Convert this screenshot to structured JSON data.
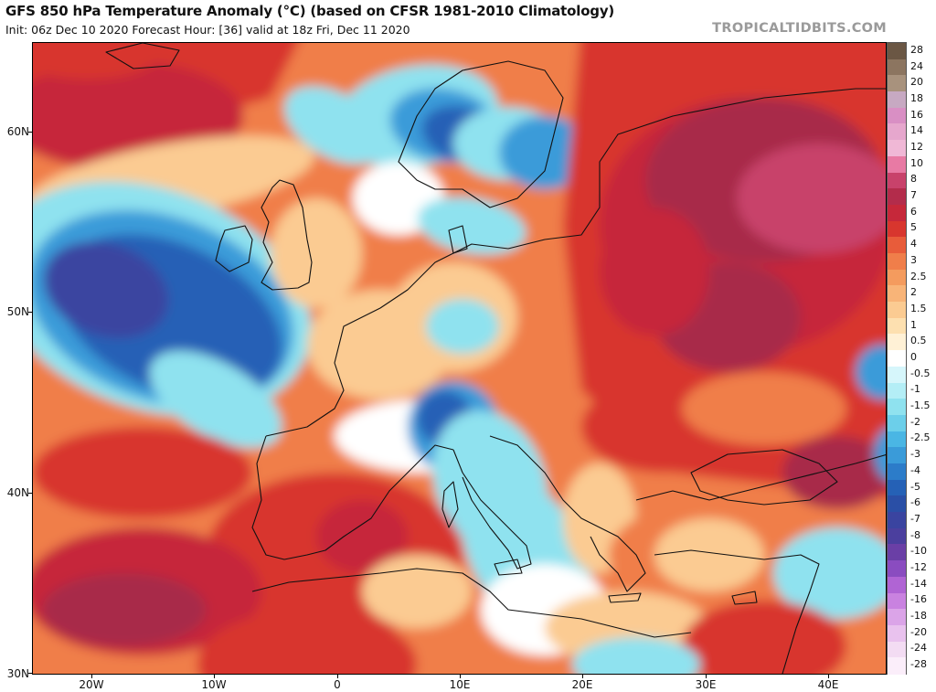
{
  "header": {
    "title": "GFS 850 hPa Temperature Anomaly (°C) (based on CFSR 1981-2010 Climatology)",
    "subtitle": "Init: 06z Dec 10 2020   Forecast Hour: [36]   valid at 18z Fri, Dec 11 2020",
    "brand": "TROPICALTIDBITS.COM"
  },
  "axes": {
    "lat_labels": [
      "60N",
      "50N",
      "40N",
      "30N"
    ],
    "lon_labels": [
      "20W",
      "10W",
      "0",
      "10E",
      "20E",
      "30E",
      "40E"
    ]
  },
  "colorbar": {
    "levels": [
      {
        "label": "28",
        "color": "#6b5744"
      },
      {
        "label": "24",
        "color": "#8c7560"
      },
      {
        "label": "20",
        "color": "#a8927d"
      },
      {
        "label": "18",
        "color": "#c7a9c2"
      },
      {
        "label": "16",
        "color": "#d98fc4"
      },
      {
        "label": "14",
        "color": "#e6a7cd"
      },
      {
        "label": "12",
        "color": "#f0b8d6"
      },
      {
        "label": "10",
        "color": "#e87aa4"
      },
      {
        "label": "8",
        "color": "#c8426b"
      },
      {
        "label": "7",
        "color": "#b32c4b"
      },
      {
        "label": "6",
        "color": "#c6283a"
      },
      {
        "label": "5",
        "color": "#d8362e"
      },
      {
        "label": "4",
        "color": "#e85c3a"
      },
      {
        "label": "3",
        "color": "#f07e4a"
      },
      {
        "label": "2.5",
        "color": "#f49b5e"
      },
      {
        "label": "2",
        "color": "#f8b478"
      },
      {
        "label": "1.5",
        "color": "#fbcb92"
      },
      {
        "label": "1",
        "color": "#fde0b0"
      },
      {
        "label": "0.5",
        "color": "#fff1d6"
      },
      {
        "label": "0",
        "color": "#ffffff"
      },
      {
        "label": "-0.5",
        "color": "#d6f6fb"
      },
      {
        "label": "-1",
        "color": "#b4eef6"
      },
      {
        "label": "-1.5",
        "color": "#8fe2ef"
      },
      {
        "label": "-2",
        "color": "#6ccfea"
      },
      {
        "label": "-2.5",
        "color": "#4ab6e4"
      },
      {
        "label": "-3",
        "color": "#3a9bd9"
      },
      {
        "label": "-4",
        "color": "#2c7cc9"
      },
      {
        "label": "-5",
        "color": "#2561b6"
      },
      {
        "label": "-6",
        "color": "#2a4fa6"
      },
      {
        "label": "-7",
        "color": "#3a44a0"
      },
      {
        "label": "-8",
        "color": "#4b3f9e"
      },
      {
        "label": "-10",
        "color": "#6a3fa6"
      },
      {
        "label": "-12",
        "color": "#8a4cc0"
      },
      {
        "label": "-14",
        "color": "#b064d4"
      },
      {
        "label": "-16",
        "color": "#c982e0"
      },
      {
        "label": "-18",
        "color": "#dba4e8"
      },
      {
        "label": "-20",
        "color": "#e9c2ee"
      },
      {
        "label": "-24",
        "color": "#f3dcf3"
      },
      {
        "label": "-28",
        "color": "#fbeefa"
      }
    ]
  },
  "map_colors": {
    "ocean_base": "#f49b5e",
    "deep_red": "#c6283a",
    "maroon": "#a82a4a",
    "pink": "#c8426b",
    "red": "#d8362e",
    "orange": "#f07e4a",
    "light_orange": "#fbcb92",
    "white": "#ffffff",
    "light_blue": "#8fe2ef",
    "blue": "#3a9bd9",
    "dark_blue": "#2561b6",
    "purple": "#3a44a0",
    "border": "#111111"
  }
}
